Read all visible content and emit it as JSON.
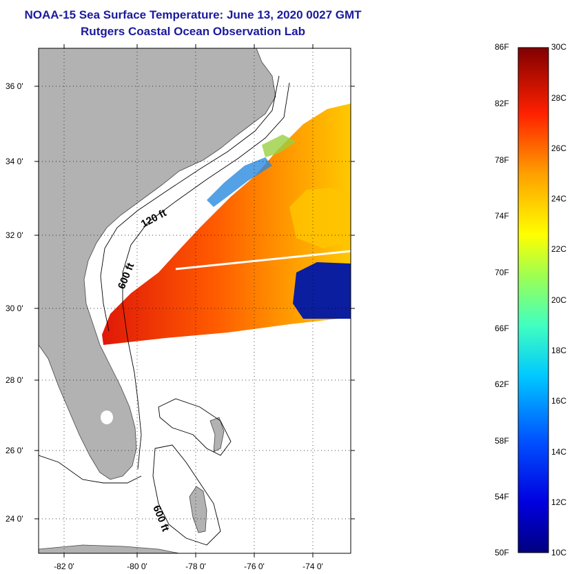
{
  "header": {
    "title": "NOAA-15 Sea Surface Temperature:  June 13, 2020 0027 GMT",
    "subtitle": "Rutgers Coastal Ocean Observation Lab"
  },
  "map": {
    "lat_ticks": [
      "36 0'",
      "34 0'",
      "32 0'",
      "30 0'",
      "28 0'",
      "26 0'",
      "24 0'"
    ],
    "lon_ticks": [
      "-82 0'",
      "-80 0'",
      "-78 0'",
      "-76 0'",
      "-74 0'"
    ],
    "contour_labels": [
      "120 ft",
      "600 ft",
      "600 ft"
    ]
  },
  "colorbar": {
    "fahrenheit_labels": [
      "86F",
      "82F",
      "78F",
      "74F",
      "70F",
      "66F",
      "62F",
      "58F",
      "54F",
      "50F"
    ],
    "celsius_labels": [
      "30C",
      "28C",
      "26C",
      "24C",
      "22C",
      "20C",
      "18C",
      "16C",
      "14C",
      "12C",
      "10C"
    ]
  },
  "colors": {
    "land": "#b2b2b2",
    "ocean": "#ffffff",
    "title": "#1a1a9c",
    "sst_warm": "#e8200a",
    "sst_mid": "#ffd000",
    "sst_cool": "#0020a0"
  }
}
